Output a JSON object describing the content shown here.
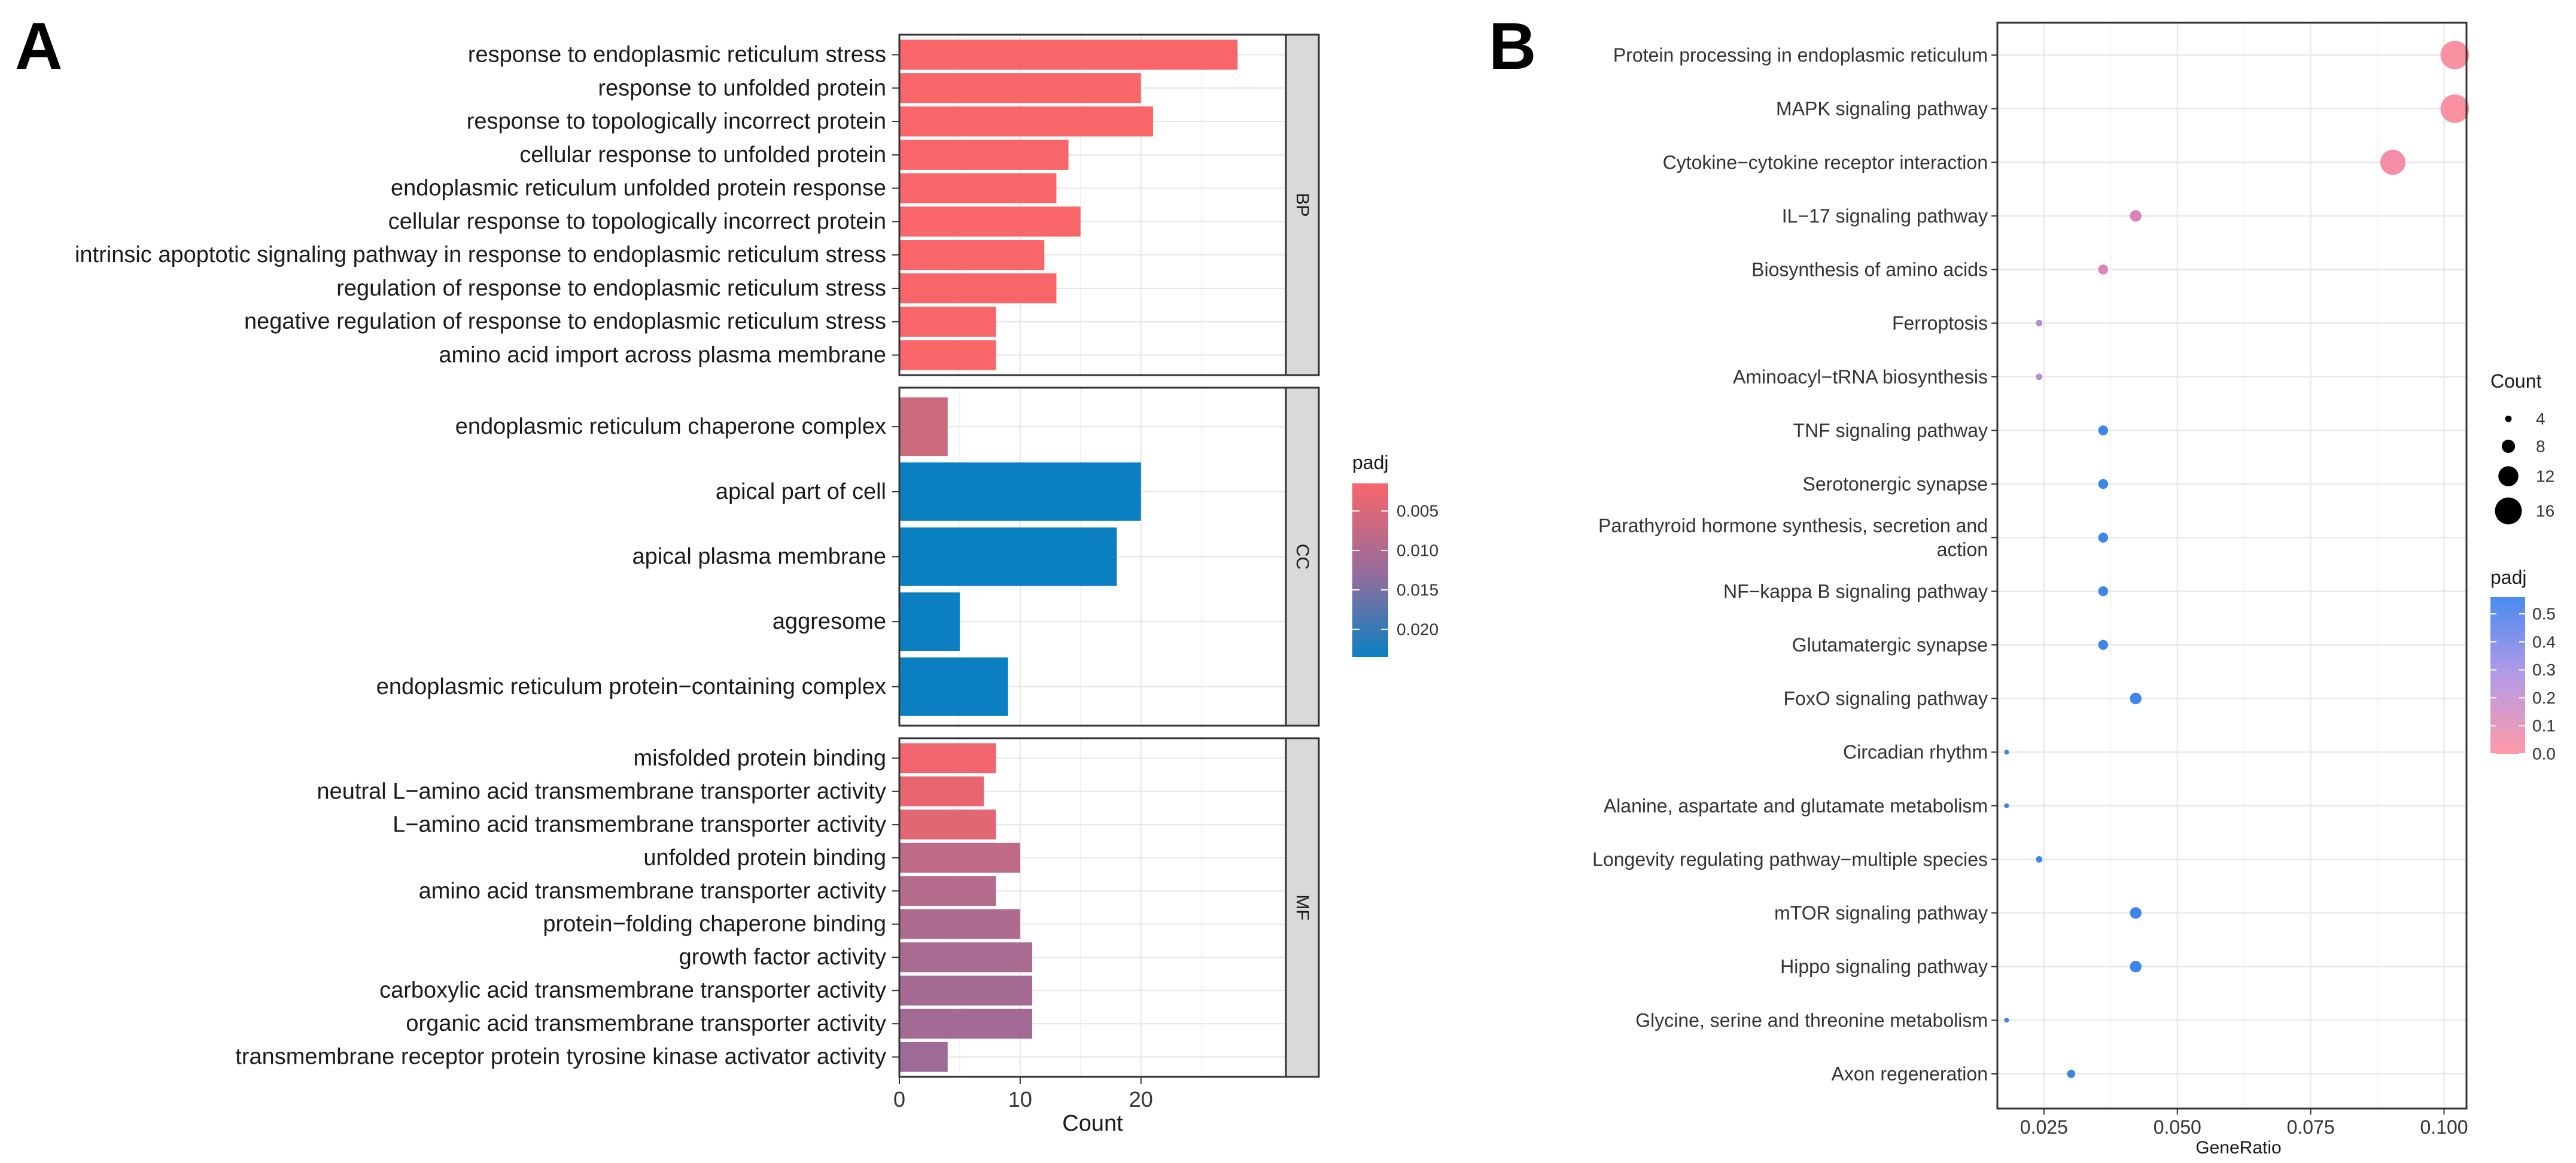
{
  "chart_data": [
    {
      "panel_letter": "A",
      "type": "bar",
      "orientation": "horizontal",
      "xlabel": "Count",
      "xlim": [
        0,
        32
      ],
      "xticks": [
        "0",
        "10",
        "20"
      ],
      "xtick_values": [
        0,
        10,
        20
      ],
      "legend": {
        "title": "padj",
        "ticks": [
          "0.005",
          "0.010",
          "0.015",
          "0.020"
        ],
        "tick_values": [
          0.005,
          0.01,
          0.015,
          0.02
        ],
        "range": [
          0.0015,
          0.0235
        ],
        "color_low": "#F8666A",
        "color_mid": "#996C9A",
        "color_high": "#0A80C2",
        "placement": "right"
      },
      "facets": [
        {
          "name": "BP",
          "categories": [
            "response to endoplasmic reticulum stress",
            "response to unfolded protein",
            "response to topologically incorrect protein",
            "cellular response to unfolded protein",
            "endoplasmic reticulum unfolded protein response",
            "cellular response to topologically incorrect protein",
            "intrinsic apoptotic signaling pathway in response to endoplasmic reticulum stress",
            "regulation of response to endoplasmic reticulum stress",
            "negative regulation of response to endoplasmic reticulum stress",
            "amino acid import across plasma membrane"
          ],
          "values": [
            28,
            20,
            21,
            14,
            13,
            15,
            12,
            13,
            8,
            8
          ],
          "colors": [
            "#F8666A",
            "#F8666A",
            "#F8666A",
            "#F8666A",
            "#F8666A",
            "#F8666A",
            "#F8666A",
            "#F8666A",
            "#F8666A",
            "#F8666A"
          ]
        },
        {
          "name": "CC",
          "categories": [
            "endoplasmic reticulum chaperone complex",
            "apical part of cell",
            "apical plasma membrane",
            "aggresome",
            "endoplasmic reticulum protein−containing complex"
          ],
          "values": [
            4,
            20,
            18,
            5,
            9
          ],
          "colors": [
            "#CC6A7E",
            "#0A80C2",
            "#0A80C2",
            "#0A80C2",
            "#0A80C2"
          ]
        },
        {
          "name": "MF",
          "categories": [
            "misfolded protein binding",
            "neutral L−amino acid transmembrane transporter activity",
            "L−amino acid transmembrane transporter activity",
            "unfolded protein binding",
            "amino acid transmembrane transporter activity",
            "protein−folding chaperone binding",
            "growth factor activity",
            "carboxylic acid transmembrane transporter activity",
            "organic acid transmembrane transporter activity",
            "transmembrane receptor protein tyrosine kinase activator activity"
          ],
          "values": [
            8,
            7,
            8,
            10,
            8,
            10,
            11,
            11,
            11,
            4
          ],
          "colors": [
            "#F0656E",
            "#E9656F",
            "#E26775",
            "#BF6A87",
            "#B56B8C",
            "#AD6B90",
            "#A86B92",
            "#A66B93",
            "#A36B94",
            "#9E6B96"
          ]
        }
      ]
    },
    {
      "panel_letter": "B",
      "type": "scatter",
      "xlabel": "GeneRatio",
      "xlim": [
        0.01627,
        0.1042
      ],
      "xticks": [
        "0.025",
        "0.050",
        "0.075",
        "0.100"
      ],
      "xtick_values": [
        0.025,
        0.05,
        0.075,
        0.1
      ],
      "categories": [
        "Protein processing in endoplasmic reticulum",
        "MAPK signaling pathway",
        "Cytokine−cytokine receptor interaction",
        "IL−17 signaling pathway",
        "Biosynthesis of amino acids",
        "Ferroptosis",
        "Aminoacyl−tRNA biosynthesis",
        "TNF signaling pathway",
        "Serotonergic synapse",
        "Parathyroid hormone synthesis, secretion and action",
        "NF−kappa B signaling pathway",
        "Glutamatergic synapse",
        "FoxO signaling pathway",
        "Circadian rhythm",
        "Alanine, aspartate and glutamate metabolism",
        "Longevity regulating pathway−multiple species",
        "mTOR signaling pathway",
        "Hippo signaling pathway",
        "Glycine, serine and threonine metabolism",
        "Axon regeneration"
      ],
      "category_lines": [
        [
          "Protein processing in endoplasmic reticulum"
        ],
        [
          "MAPK signaling pathway"
        ],
        [
          "Cytokine−cytokine receptor interaction"
        ],
        [
          "IL−17 signaling pathway"
        ],
        [
          "Biosynthesis of amino acids"
        ],
        [
          "Ferroptosis"
        ],
        [
          "Aminoacyl−tRNA biosynthesis"
        ],
        [
          "TNF signaling pathway"
        ],
        [
          "Serotonergic synapse"
        ],
        [
          "Parathyroid hormone synthesis, secretion and",
          "action"
        ],
        [
          "NF−kappa B signaling pathway"
        ],
        [
          "Glutamatergic synapse"
        ],
        [
          "FoxO signaling pathway"
        ],
        [
          "Circadian rhythm"
        ],
        [
          "Alanine, aspartate and glutamate metabolism"
        ],
        [
          "Longevity regulating pathway−multiple species"
        ],
        [
          "mTOR signaling pathway"
        ],
        [
          "Hippo signaling pathway"
        ],
        [
          "Glycine, serine and threonine metabolism"
        ],
        [
          "Axon regeneration"
        ]
      ],
      "gene_ratio": [
        0.102,
        0.102,
        0.0904,
        0.0422,
        0.0361,
        0.0241,
        0.0241,
        0.0361,
        0.0361,
        0.0361,
        0.0361,
        0.0361,
        0.0422,
        0.018,
        0.018,
        0.0241,
        0.0422,
        0.0422,
        0.018,
        0.0301
      ],
      "count": [
        17,
        17,
        15,
        7,
        6,
        4,
        4,
        6,
        6,
        6,
        6,
        6,
        7,
        3,
        3,
        4,
        7,
        7,
        3,
        5
      ],
      "padj": [
        0.01,
        0.01,
        0.02,
        0.28,
        0.25,
        0.36,
        0.36,
        0.55,
        0.55,
        0.55,
        0.55,
        0.55,
        0.55,
        0.55,
        0.55,
        0.55,
        0.55,
        0.55,
        0.55,
        0.55
      ],
      "colors": [
        "#F991A2",
        "#F991A2",
        "#F58DA7",
        "#DA80BD",
        "#DE82BA",
        "#B38DD4",
        "#B38DD4",
        "#3B86E6",
        "#3B86E6",
        "#3B86E6",
        "#3B86E6",
        "#3B86E6",
        "#3B86E6",
        "#3B86E6",
        "#3B86E6",
        "#3B86E6",
        "#3B86E6",
        "#3B86E6",
        "#3B86E6",
        "#3B86E6"
      ],
      "size_legend": {
        "title": "Count",
        "labels": [
          "4",
          "8",
          "12",
          "16"
        ],
        "values": [
          4,
          8,
          12,
          16
        ]
      },
      "color_legend": {
        "title": "padj",
        "labels": [
          "0.5",
          "0.4",
          "0.3",
          "0.2",
          "0.1",
          "0.0"
        ],
        "values": [
          0.5,
          0.4,
          0.3,
          0.2,
          0.1,
          0.0
        ],
        "range": [
          0.0,
          0.56
        ],
        "color_low": "#FF9AA6",
        "color_mid": "#B39BE6",
        "color_high": "#4A8BF0"
      }
    }
  ]
}
